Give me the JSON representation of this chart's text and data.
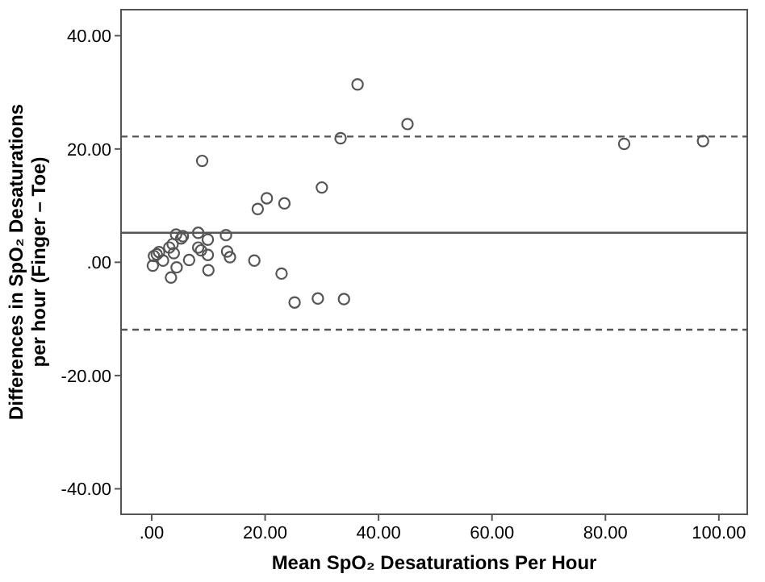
{
  "chart_data": {
    "type": "scatter",
    "xlabel": "Mean SpO₂ Desaturations Per Hour",
    "ylabel": "Differences in SpO₂ Desaturations per hour (Finger – Toe)",
    "xlim": [
      -5.4,
      105
    ],
    "ylim": [
      -44.5,
      44.6
    ],
    "xticks": [
      {
        "value": 0,
        "label": ".00"
      },
      {
        "value": 20,
        "label": "20.00"
      },
      {
        "value": 40,
        "label": "40.00"
      },
      {
        "value": 60,
        "label": "60.00"
      },
      {
        "value": 80,
        "label": "80.00"
      },
      {
        "value": 100,
        "label": "100.00"
      }
    ],
    "yticks": [
      {
        "value": -40,
        "label": "-40.00"
      },
      {
        "value": -20,
        "label": "-20.00"
      },
      {
        "value": 0,
        "label": ".00"
      },
      {
        "value": 20,
        "label": "20.00"
      },
      {
        "value": 40,
        "label": "40.00"
      }
    ],
    "grid": false,
    "marker": "circle",
    "ref_lines": [
      {
        "axis": "y",
        "value": 5.2,
        "color": "#555555",
        "line_style": "solid"
      },
      {
        "axis": "y",
        "value": 22.2,
        "color": "#555555",
        "line_style": "dashed"
      },
      {
        "axis": "y",
        "value": -11.9,
        "color": "#555555",
        "line_style": "dashed"
      }
    ],
    "series": [
      {
        "color": "#555555",
        "x": [
          36.3,
          45.1,
          33.3,
          83.3,
          97.2,
          8.9,
          30.0,
          20.3,
          18.7,
          23.4,
          13.1,
          8.2,
          4.3,
          5.5,
          5.2,
          9.9,
          3.7,
          3.1,
          8.2,
          8.7,
          13.3,
          9.9,
          13.8,
          3.9,
          1.3,
          0.9,
          0.4,
          2.0,
          6.6,
          18.1,
          0.2,
          4.4,
          10.0,
          3.4,
          22.9,
          25.2,
          29.3,
          33.9
        ],
        "values": [
          31.4,
          24.4,
          21.9,
          20.9,
          21.4,
          17.9,
          13.2,
          11.3,
          9.4,
          10.4,
          4.8,
          5.2,
          4.9,
          4.6,
          4.2,
          4.0,
          3.2,
          2.6,
          2.6,
          2.1,
          1.9,
          1.3,
          0.9,
          1.6,
          1.8,
          1.4,
          1.1,
          0.3,
          0.4,
          0.3,
          -0.6,
          -0.9,
          -1.4,
          -2.7,
          -2.0,
          -7.1,
          -6.4,
          -6.5
        ]
      }
    ]
  }
}
